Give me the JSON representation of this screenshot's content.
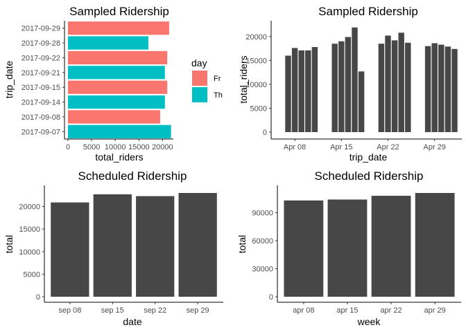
{
  "chart_data": [
    {
      "type": "bar",
      "orientation": "horizontal",
      "title": "Sampled Ridership",
      "xlabel": "total_riders",
      "ylabel": "trip_date",
      "categories": [
        "2017-09-07",
        "2017-09-08",
        "2017-09-14",
        "2017-09-15",
        "2017-09-21",
        "2017-09-22",
        "2017-09-28",
        "2017-09-29"
      ],
      "values": [
        21800,
        19500,
        20500,
        21000,
        20500,
        21000,
        17000,
        21400
      ],
      "day": [
        "Th",
        "Fr",
        "Th",
        "Fr",
        "Th",
        "Fr",
        "Th",
        "Fr"
      ],
      "xlim": [
        0,
        22000
      ],
      "xticks": [
        0,
        5000,
        10000,
        15000,
        20000
      ],
      "legend": {
        "title": "day",
        "position": "right",
        "entries": [
          {
            "label": "Fr",
            "color": "#F8766D"
          },
          {
            "label": "Th",
            "color": "#00BFC4"
          }
        ]
      },
      "grid": false
    },
    {
      "type": "bar",
      "title": "Sampled Ridership",
      "xlabel": "trip_date",
      "ylabel": "total_riders",
      "bar_color": "#474747",
      "x_dates": [
        "04-07",
        "04-08",
        "04-09",
        "04-10",
        "04-11",
        "04-14",
        "04-15",
        "04-16",
        "04-17",
        "04-18",
        "04-21",
        "04-22",
        "04-23",
        "04-24",
        "04-25",
        "04-28",
        "04-29",
        "04-30",
        "05-01",
        "05-02"
      ],
      "values": [
        16000,
        17600,
        17100,
        17100,
        17800,
        18500,
        19000,
        19900,
        21900,
        12700,
        18500,
        20200,
        19200,
        20800,
        18700,
        18000,
        18600,
        18300,
        17900,
        17400
      ],
      "ylim": [
        0,
        22000
      ],
      "yticks": [
        0,
        5000,
        10000,
        15000,
        20000
      ],
      "xticks": [
        "Apr 08",
        "Apr 15",
        "Apr 22",
        "Apr 29"
      ],
      "grid": false
    },
    {
      "type": "bar",
      "title": "Scheduled Ridership",
      "xlabel": "date",
      "ylabel": "total",
      "bar_color": "#474747",
      "categories": [
        "sep 08",
        "sep 15",
        "sep 22",
        "sep 29"
      ],
      "values": [
        20900,
        22700,
        22300,
        23000
      ],
      "ylim": [
        0,
        23000
      ],
      "yticks": [
        0,
        5000,
        10000,
        15000,
        20000
      ],
      "grid": false
    },
    {
      "type": "bar",
      "title": "Scheduled Ridership",
      "xlabel": "week",
      "ylabel": "total",
      "bar_color": "#474747",
      "categories": [
        "apr 08",
        "apr 15",
        "apr 22",
        "apr 29"
      ],
      "values": [
        103000,
        104000,
        108000,
        111000
      ],
      "ylim": [
        0,
        111000
      ],
      "yticks": [
        0,
        30000,
        60000,
        90000
      ],
      "grid": false
    }
  ]
}
